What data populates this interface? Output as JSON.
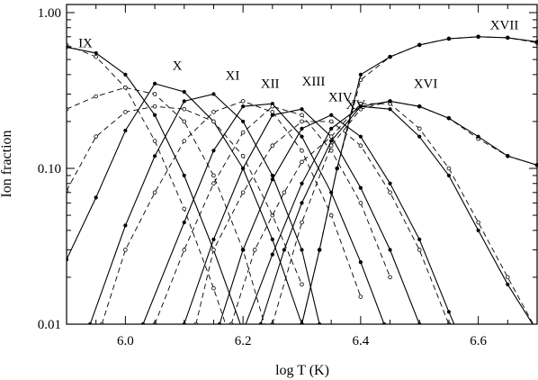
{
  "chart_data": {
    "type": "line",
    "xlabel": "log T (K)",
    "ylabel": "Ion fraction",
    "x_range": [
      5.9,
      6.7
    ],
    "y_range": [
      0.01,
      1.0
    ],
    "y_scale": "log",
    "x_ticks": [
      {
        "value": 6.0,
        "label": "6.0"
      },
      {
        "value": 6.2,
        "label": "6.2"
      },
      {
        "value": 6.4,
        "label": "6.4"
      },
      {
        "value": 6.6,
        "label": "6.6"
      }
    ],
    "y_ticks": [
      {
        "value": 0.01,
        "label": "0.01"
      },
      {
        "value": 0.1,
        "label": "0.10"
      },
      {
        "value": 1.0,
        "label": "1.00"
      }
    ],
    "grid": false,
    "legend": "none",
    "line_color": "#000000",
    "series": [
      {
        "name": "IX",
        "label": {
          "x": 5.92,
          "y": 0.6
        },
        "solid_marker": "filled",
        "solid": [
          [
            5.9,
            0.6
          ],
          [
            5.95,
            0.55
          ],
          [
            6.0,
            0.4
          ],
          [
            6.05,
            0.22
          ],
          [
            6.1,
            0.09
          ],
          [
            6.15,
            0.03
          ],
          [
            6.2,
            0.009
          ]
        ],
        "dashed_marker": "open",
        "dashed": [
          [
            5.9,
            0.62
          ],
          [
            5.95,
            0.52
          ],
          [
            6.0,
            0.33
          ],
          [
            6.05,
            0.15
          ],
          [
            6.1,
            0.055
          ],
          [
            6.15,
            0.017
          ],
          [
            6.19,
            0.006
          ]
        ]
      },
      {
        "name": "X",
        "label": {
          "x": 6.08,
          "y": 0.43
        },
        "solid_marker": "filled",
        "solid": [
          [
            5.9,
            0.026
          ],
          [
            5.95,
            0.065
          ],
          [
            6.0,
            0.175
          ],
          [
            6.05,
            0.35
          ],
          [
            6.1,
            0.31
          ],
          [
            6.15,
            0.2
          ],
          [
            6.2,
            0.1
          ],
          [
            6.25,
            0.035
          ],
          [
            6.3,
            0.01
          ]
        ],
        "dashed_marker": "open",
        "dashed": [
          [
            5.9,
            0.24
          ],
          [
            5.95,
            0.29
          ],
          [
            6.0,
            0.33
          ],
          [
            6.05,
            0.3
          ],
          [
            6.1,
            0.2
          ],
          [
            6.15,
            0.09
          ],
          [
            6.2,
            0.03
          ],
          [
            6.24,
            0.009
          ]
        ]
      },
      {
        "name": "XI",
        "label": {
          "x": 6.17,
          "y": 0.37
        },
        "solid_marker": "filled",
        "solid": [
          [
            5.94,
            0.01
          ],
          [
            6.0,
            0.043
          ],
          [
            6.05,
            0.12
          ],
          [
            6.1,
            0.27
          ],
          [
            6.15,
            0.3
          ],
          [
            6.2,
            0.2
          ],
          [
            6.25,
            0.09
          ],
          [
            6.3,
            0.03
          ],
          [
            6.33,
            0.01
          ]
        ],
        "dashed_marker": "open",
        "dashed": [
          [
            5.9,
            0.072
          ],
          [
            5.95,
            0.16
          ],
          [
            6.0,
            0.23
          ],
          [
            6.05,
            0.25
          ],
          [
            6.1,
            0.24
          ],
          [
            6.15,
            0.2
          ],
          [
            6.2,
            0.12
          ],
          [
            6.25,
            0.05
          ],
          [
            6.3,
            0.018
          ]
        ]
      },
      {
        "name": "XII",
        "label": {
          "x": 6.23,
          "y": 0.33
        },
        "solid_marker": "filled",
        "solid": [
          [
            6.03,
            0.01
          ],
          [
            6.1,
            0.045
          ],
          [
            6.15,
            0.13
          ],
          [
            6.2,
            0.25
          ],
          [
            6.25,
            0.26
          ],
          [
            6.3,
            0.16
          ],
          [
            6.35,
            0.07
          ],
          [
            6.4,
            0.025
          ],
          [
            6.44,
            0.01
          ]
        ],
        "dashed_marker": "open",
        "dashed": [
          [
            5.96,
            0.01
          ],
          [
            6.0,
            0.03
          ],
          [
            6.05,
            0.07
          ],
          [
            6.1,
            0.15
          ],
          [
            6.15,
            0.23
          ],
          [
            6.2,
            0.27
          ],
          [
            6.25,
            0.23
          ],
          [
            6.3,
            0.13
          ],
          [
            6.35,
            0.05
          ],
          [
            6.4,
            0.015
          ]
        ]
      },
      {
        "name": "XIII",
        "label": {
          "x": 6.3,
          "y": 0.34
        },
        "solid_marker": "filled",
        "solid": [
          [
            6.1,
            0.01
          ],
          [
            6.15,
            0.035
          ],
          [
            6.2,
            0.1
          ],
          [
            6.25,
            0.22
          ],
          [
            6.3,
            0.24
          ],
          [
            6.35,
            0.16
          ],
          [
            6.4,
            0.075
          ],
          [
            6.45,
            0.03
          ],
          [
            6.5,
            0.01
          ]
        ],
        "dashed_marker": "open",
        "dashed": [
          [
            6.05,
            0.01
          ],
          [
            6.1,
            0.03
          ],
          [
            6.15,
            0.08
          ],
          [
            6.2,
            0.17
          ],
          [
            6.25,
            0.25
          ],
          [
            6.3,
            0.22
          ],
          [
            6.35,
            0.13
          ],
          [
            6.4,
            0.06
          ],
          [
            6.45,
            0.02
          ]
        ]
      },
      {
        "name": "XIV",
        "label": {
          "x": 6.345,
          "y": 0.27
        },
        "solid_marker": "filled",
        "solid": [
          [
            6.16,
            0.01
          ],
          [
            6.2,
            0.03
          ],
          [
            6.25,
            0.085
          ],
          [
            6.3,
            0.18
          ],
          [
            6.35,
            0.22
          ],
          [
            6.4,
            0.16
          ],
          [
            6.45,
            0.08
          ],
          [
            6.5,
            0.035
          ],
          [
            6.55,
            0.012
          ],
          [
            6.57,
            0.008
          ]
        ],
        "dashed_marker": "open",
        "dashed": [
          [
            6.12,
            0.01
          ],
          [
            6.15,
            0.03
          ],
          [
            6.2,
            0.07
          ],
          [
            6.25,
            0.14
          ],
          [
            6.3,
            0.2
          ],
          [
            6.35,
            0.2
          ],
          [
            6.4,
            0.14
          ],
          [
            6.45,
            0.07
          ],
          [
            6.5,
            0.03
          ],
          [
            6.55,
            0.01
          ]
        ]
      },
      {
        "name": "XV",
        "label": {
          "x": 6.375,
          "y": 0.24
        },
        "solid_marker": "filled",
        "solid": [
          [
            6.2,
            0.009
          ],
          [
            6.25,
            0.028
          ],
          [
            6.3,
            0.08
          ],
          [
            6.35,
            0.18
          ],
          [
            6.4,
            0.25
          ],
          [
            6.45,
            0.24
          ],
          [
            6.5,
            0.16
          ],
          [
            6.55,
            0.09
          ],
          [
            6.6,
            0.04
          ],
          [
            6.65,
            0.018
          ],
          [
            6.7,
            0.009
          ]
        ],
        "dashed_marker": "open",
        "dashed": [
          [
            6.18,
            0.01
          ],
          [
            6.22,
            0.03
          ],
          [
            6.27,
            0.07
          ],
          [
            6.3,
            0.11
          ],
          [
            6.35,
            0.16
          ],
          [
            6.4,
            0.26
          ],
          [
            6.45,
            0.26
          ],
          [
            6.5,
            0.18
          ],
          [
            6.55,
            0.1
          ],
          [
            6.6,
            0.045
          ],
          [
            6.65,
            0.02
          ],
          [
            6.7,
            0.009
          ]
        ]
      },
      {
        "name": "XVI",
        "label": {
          "x": 6.49,
          "y": 0.33
        },
        "solid_marker": "filled",
        "solid": [
          [
            6.23,
            0.01
          ],
          [
            6.27,
            0.03
          ],
          [
            6.3,
            0.06
          ],
          [
            6.35,
            0.15
          ],
          [
            6.4,
            0.25
          ],
          [
            6.45,
            0.27
          ],
          [
            6.5,
            0.25
          ],
          [
            6.55,
            0.21
          ],
          [
            6.6,
            0.16
          ],
          [
            6.65,
            0.12
          ],
          [
            6.7,
            0.105
          ]
        ],
        "dashed_marker": "open",
        "dashed": [
          [
            6.25,
            0.01
          ],
          [
            6.3,
            0.045
          ],
          [
            6.35,
            0.14
          ],
          [
            6.4,
            0.24
          ],
          [
            6.45,
            0.27
          ],
          [
            6.5,
            0.25
          ],
          [
            6.55,
            0.21
          ],
          [
            6.6,
            0.155
          ],
          [
            6.65,
            0.12
          ],
          [
            6.7,
            0.105
          ]
        ]
      },
      {
        "name": "XVII",
        "label": {
          "x": 6.62,
          "y": 0.78
        },
        "solid_marker": "filled",
        "solid": [
          [
            6.3,
            0.01
          ],
          [
            6.33,
            0.03
          ],
          [
            6.36,
            0.1
          ],
          [
            6.4,
            0.4
          ],
          [
            6.45,
            0.52
          ],
          [
            6.5,
            0.62
          ],
          [
            6.55,
            0.68
          ],
          [
            6.6,
            0.7
          ],
          [
            6.65,
            0.69
          ],
          [
            6.7,
            0.65
          ]
        ],
        "dashed_marker": "open",
        "dashed": [
          [
            6.3,
            0.01
          ],
          [
            6.33,
            0.03
          ],
          [
            6.36,
            0.1
          ],
          [
            6.4,
            0.37
          ],
          [
            6.45,
            0.52
          ],
          [
            6.5,
            0.62
          ],
          [
            6.55,
            0.68
          ],
          [
            6.6,
            0.7
          ],
          [
            6.65,
            0.69
          ],
          [
            6.7,
            0.64
          ]
        ]
      }
    ]
  }
}
